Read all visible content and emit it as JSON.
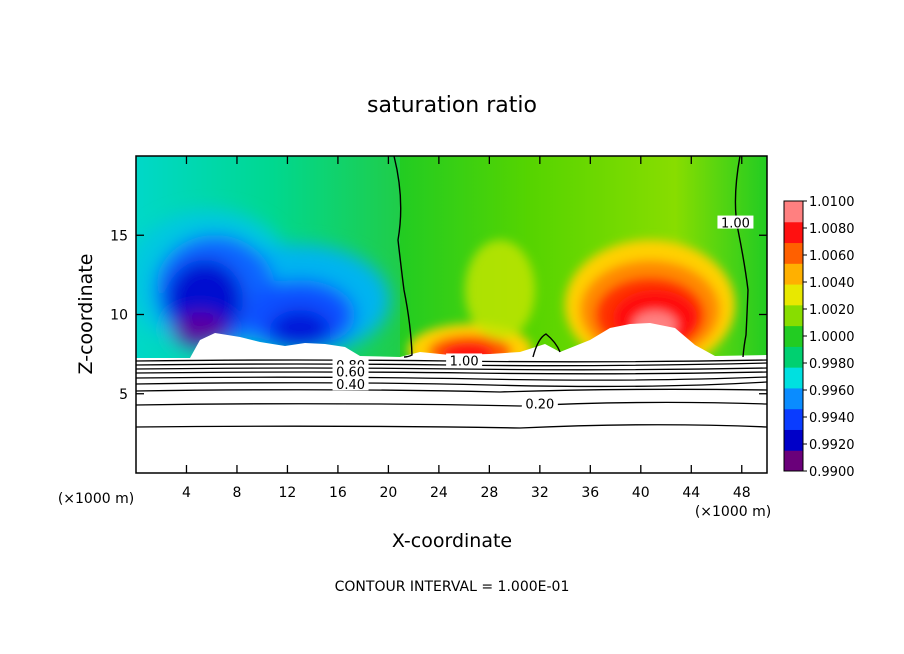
{
  "chart_data": {
    "type": "heatmap",
    "title": "saturation ratio",
    "xlabel": "X-coordinate",
    "ylabel": "Z-coordinate",
    "x_unit": "(×1000 m)",
    "xlim": [
      0,
      50
    ],
    "ylim": [
      0,
      20
    ],
    "x_ticks": [
      4,
      8,
      12,
      16,
      20,
      24,
      28,
      32,
      36,
      40,
      44,
      48
    ],
    "y_ticks": [
      5,
      10,
      15
    ],
    "colorbar": {
      "levels": [
        "0.9900",
        "0.9920",
        "0.9940",
        "0.9960",
        "0.9980",
        "1.0000",
        "1.0020",
        "1.0040",
        "1.0060",
        "1.0080",
        "1.0100"
      ],
      "colors": [
        "#6a007a",
        "#0000c8",
        "#0a3cff",
        "#0a8cff",
        "#00e0e0",
        "#00d070",
        "#22cc22",
        "#88dd00",
        "#e8e800",
        "#ffb000",
        "#ff6000",
        "#ff1010",
        "#ff8080"
      ]
    },
    "contour_labels": [
      {
        "text": "1.00",
        "x": 47.5,
        "z": 15.8
      },
      {
        "text": "1.00",
        "x": 26.0,
        "z": 7.1
      },
      {
        "text": "0.80",
        "x": 17.0,
        "z": 6.8
      },
      {
        "text": "0.60",
        "x": 17.0,
        "z": 6.4
      },
      {
        "text": "0.40",
        "x": 17.0,
        "z": 5.6
      },
      {
        "text": "0.20",
        "x": 32.0,
        "z": 4.4
      }
    ],
    "contour_interval_text": "CONTOUR INTERVAL = 1.000E-01"
  }
}
